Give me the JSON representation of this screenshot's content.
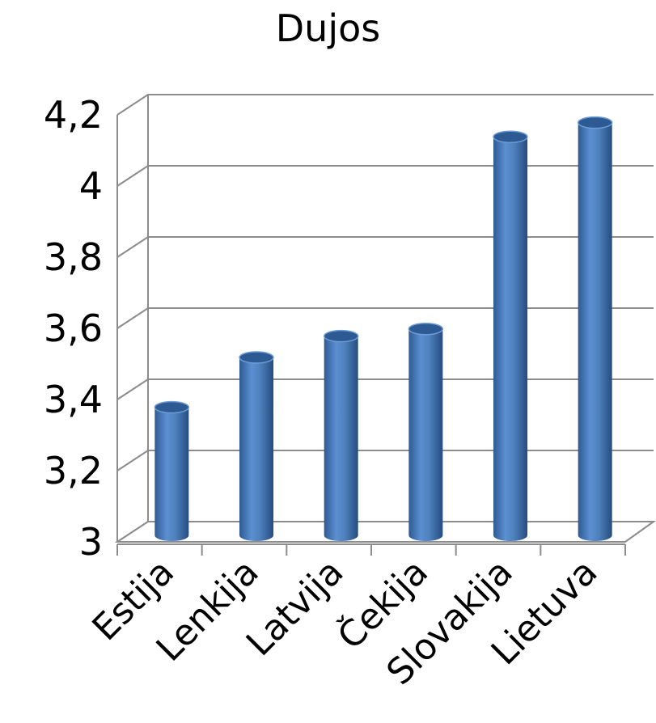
{
  "chart_data": {
    "type": "bar",
    "title": "Dujos",
    "xlabel": "",
    "ylabel": "",
    "categories": [
      "Estija",
      "Lenkija",
      "Latvija",
      "Čekija",
      "Slovakija",
      "Lietuva"
    ],
    "values": [
      3.36,
      3.5,
      3.56,
      3.58,
      4.12,
      4.16
    ],
    "ylim": [
      3,
      4.2
    ],
    "yticks": [
      "3",
      "3,2",
      "3,4",
      "3,6",
      "3,8",
      "4",
      "4,2"
    ],
    "grid": true,
    "legend": "none",
    "bar_style": "3d-cylinder",
    "colors": {
      "bar": "#4f81bd",
      "bar_dark": "#2e5a94",
      "bar_light": "#8fb4e3",
      "grid": "#8c8c8c"
    }
  }
}
